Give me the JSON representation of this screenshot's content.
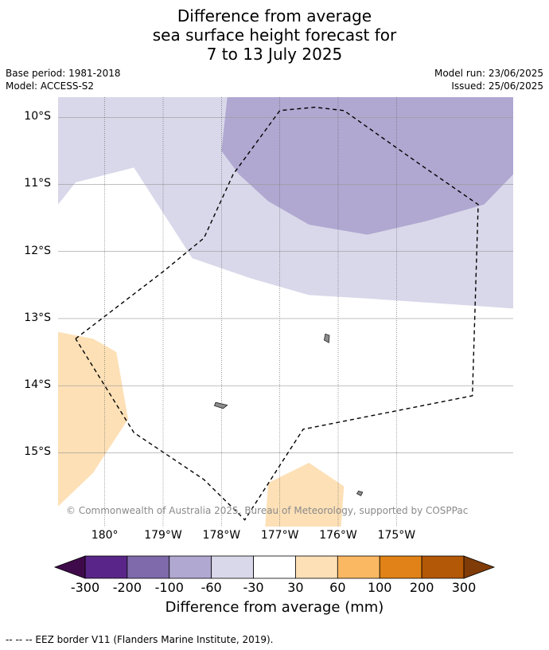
{
  "title_lines": [
    "Difference from average",
    "sea surface height forecast for",
    "7 to 13 July 2025"
  ],
  "meta": {
    "base_period": "Base period: 1981-2018",
    "model": "Model: ACCESS-S2",
    "model_run": "Model run: 23/06/2025",
    "issued": "Issued: 25/06/2025"
  },
  "copyright": "© Commonwealth of Australia 2025, Bureau of Meteorology, supported by COSPPac",
  "footer": "--  --  -- EEZ border V11 (Flanders Marine Institute, 2019).",
  "chart_data": {
    "type": "heatmap",
    "map_extent": {
      "lon": [
        -180.8,
        -173.0
      ],
      "lat": [
        -16.1,
        -9.7
      ]
    },
    "y_ticks": [
      {
        "value": -10,
        "label": "10°S"
      },
      {
        "value": -11,
        "label": "11°S"
      },
      {
        "value": -12,
        "label": "12°S"
      },
      {
        "value": -13,
        "label": "13°S"
      },
      {
        "value": -14,
        "label": "14°S"
      },
      {
        "value": -15,
        "label": "15°S"
      }
    ],
    "x_ticks": [
      {
        "value": -180,
        "label": "180°"
      },
      {
        "value": -179,
        "label": "179°W"
      },
      {
        "value": -178,
        "label": "178°W"
      },
      {
        "value": -177,
        "label": "177°W"
      },
      {
        "value": -176,
        "label": "176°W"
      },
      {
        "value": -175,
        "label": "175°W"
      }
    ],
    "colorbar": {
      "title": "Difference from average (mm)",
      "labels": [
        "-300",
        "-200",
        "-100",
        "-60",
        "-30",
        "30",
        "60",
        "100",
        "200",
        "300"
      ],
      "colors": [
        "#5a2588",
        "#7f6aac",
        "#b0a8d1",
        "#d8d8ea",
        "#ffffff",
        "#fde0b6",
        "#fbb862",
        "#e08217",
        "#b35806"
      ],
      "extend_low_color": "#3f0a4a",
      "extend_high_color": "#7f3b08"
    },
    "regions": [
      {
        "class": "-60 to -30",
        "color": "#d8d8ea",
        "points": [
          [
            -180.8,
            -9.7
          ],
          [
            -173.0,
            -9.7
          ],
          [
            -173.0,
            -12.85
          ],
          [
            -175.5,
            -12.7
          ],
          [
            -176.5,
            -12.65
          ],
          [
            -177.5,
            -12.4
          ],
          [
            -178.5,
            -12.1
          ],
          [
            -179.5,
            -10.75
          ],
          [
            -180.5,
            -10.97
          ],
          [
            -180.8,
            -11.3
          ]
        ]
      },
      {
        "class": "-100 to -60",
        "color": "#b0a8d1",
        "points": [
          [
            -177.9,
            -9.7
          ],
          [
            -173.0,
            -9.7
          ],
          [
            -173.0,
            -10.85
          ],
          [
            -173.5,
            -11.3
          ],
          [
            -174.5,
            -11.55
          ],
          [
            -175.5,
            -11.75
          ],
          [
            -176.5,
            -11.6
          ],
          [
            -177.2,
            -11.25
          ],
          [
            -177.7,
            -10.85
          ],
          [
            -178.0,
            -10.5
          ]
        ]
      },
      {
        "class": "30 to 60",
        "color": "#fde0b6",
        "points": [
          [
            -180.8,
            -13.2
          ],
          [
            -180.2,
            -13.3
          ],
          [
            -179.8,
            -13.5
          ],
          [
            -179.6,
            -14.5
          ],
          [
            -180.2,
            -15.3
          ],
          [
            -180.8,
            -15.8
          ]
        ]
      },
      {
        "class": "30 to 60",
        "color": "#fde0b6",
        "points": [
          [
            -177.25,
            -16.1
          ],
          [
            -177.2,
            -15.45
          ],
          [
            -176.5,
            -15.15
          ],
          [
            -175.9,
            -15.5
          ],
          [
            -175.95,
            -16.1
          ]
        ]
      }
    ],
    "islands": [
      {
        "name": "",
        "points": [
          [
            -178.1,
            -14.25
          ],
          [
            -177.9,
            -14.29
          ],
          [
            -177.97,
            -14.34
          ],
          [
            -178.12,
            -14.3
          ]
        ]
      },
      {
        "name": "",
        "points": [
          [
            -176.22,
            -13.23
          ],
          [
            -176.15,
            -13.25
          ],
          [
            -176.16,
            -13.36
          ],
          [
            -176.24,
            -13.32
          ]
        ]
      },
      {
        "name": "",
        "points": [
          [
            -175.65,
            -15.57
          ],
          [
            -175.58,
            -15.59
          ],
          [
            -175.61,
            -15.64
          ],
          [
            -175.68,
            -15.61
          ]
        ]
      }
    ],
    "eez_border": [
      [
        -180.5,
        -13.3
      ],
      [
        -179.0,
        -12.3
      ],
      [
        -178.3,
        -11.8
      ],
      [
        -177.8,
        -10.85
      ],
      [
        -177.0,
        -9.9
      ],
      [
        -176.4,
        -9.85
      ],
      [
        -175.9,
        -9.9
      ],
      [
        -174.6,
        -10.7
      ],
      [
        -173.6,
        -11.3
      ],
      [
        -173.7,
        -14.15
      ],
      [
        -176.6,
        -14.65
      ],
      [
        -177.6,
        -16.0
      ],
      [
        -178.3,
        -15.4
      ],
      [
        -179.5,
        -14.7
      ],
      [
        -180.5,
        -13.3
      ]
    ]
  }
}
